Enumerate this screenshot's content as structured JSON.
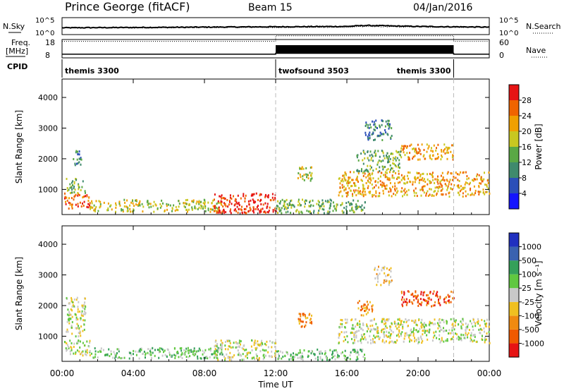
{
  "header": {
    "station": "Prince George (fitACF)",
    "beam": "Beam 15",
    "date": "04/Jan/2016"
  },
  "nsky_panel": {
    "left_label": "N.Sky",
    "right_label": "N.Search",
    "left_ticks": [
      "10^5",
      "10^0"
    ],
    "right_ticks": [
      "10^5",
      "10^0"
    ]
  },
  "freq_panel": {
    "left_label_1": "Freq.",
    "left_label_2": "[MHz]",
    "right_label": "Nave",
    "left_ticks": [
      "18",
      "8"
    ],
    "right_ticks": [
      "60",
      "0"
    ]
  },
  "cpid": {
    "label": "CPID",
    "segments": [
      {
        "name": "themis 3300",
        "start_hr": 0,
        "end_hr": 12
      },
      {
        "name": "twofsound 3503",
        "start_hr": 12,
        "end_hr": 22
      },
      {
        "name": "themis 3300",
        "start_hr": 22,
        "end_hr": 24
      }
    ]
  },
  "x_axis": {
    "label": "Time UT",
    "ticks": [
      "00:00",
      "04:00",
      "08:00",
      "12:00",
      "16:00",
      "20:00",
      "00:00"
    ],
    "range_hr": [
      0,
      24
    ]
  },
  "y_axis": {
    "label": "Slant Range [km]",
    "ticks": [
      "1000",
      "2000",
      "3000",
      "4000"
    ],
    "range_km": [
      180,
      4600
    ]
  },
  "power_colorbar": {
    "label": "Power [dB]",
    "ticks": [
      "4",
      "8",
      "12",
      "16",
      "20",
      "24",
      "28"
    ],
    "colors": [
      "#1414ff",
      "#2b4fb8",
      "#3f8a6d",
      "#5aa845",
      "#c8c820",
      "#f0a000",
      "#f06400",
      "#e61414"
    ]
  },
  "velocity_colorbar": {
    "label": "Velocity [m s⁻¹]",
    "ticks": [
      "1000",
      "500",
      "100",
      "25",
      "-25",
      "-100",
      "-500",
      "-1000"
    ],
    "colors": [
      "#2030c0",
      "#3a62b0",
      "#35a05a",
      "#60c840",
      "#c8c8c8",
      "#f0c020",
      "#f08a10",
      "#f05a00",
      "#e61414"
    ]
  },
  "chart_data": [
    {
      "type": "line",
      "x": [
        0,
        4,
        8,
        12,
        16,
        17,
        20,
        24
      ],
      "series": [
        {
          "name": "N.Sky",
          "values": [
            2.0,
            2.1,
            2.2,
            2.3,
            2.4,
            2.7,
            2.4,
            2.2
          ]
        },
        {
          "name": "N.Search",
          "values": [
            2.0,
            2.0,
            2.1,
            2.1,
            2.2,
            2.4,
            2.2,
            2.1
          ]
        }
      ],
      "ylim": [
        0,
        5
      ],
      "yscale": "log"
    },
    {
      "type": "line",
      "x": [
        0,
        12,
        12,
        22,
        22,
        24
      ],
      "series": [
        {
          "name": "Freq.",
          "values": [
            10,
            10,
            10.5,
            10.5,
            10,
            10
          ]
        },
        {
          "name": "Nave",
          "values": [
            17,
            17,
            20,
            20,
            17,
            17
          ]
        }
      ],
      "ylim": [
        8,
        18
      ]
    },
    {
      "type": "heatmap",
      "regions": [
        {
          "t": [
            0.1,
            1.6
          ],
          "r": [
            400,
            900
          ],
          "level": 6
        },
        {
          "t": [
            0.2,
            1.3
          ],
          "r": [
            900,
            1400
          ],
          "level": 3
        },
        {
          "t": [
            0.6,
            1.1
          ],
          "r": [
            1800,
            2300
          ],
          "level": 2
        },
        {
          "t": [
            1.5,
            9.0
          ],
          "r": [
            300,
            700
          ],
          "level": 4
        },
        {
          "t": [
            8.5,
            12.0
          ],
          "r": [
            250,
            900
          ],
          "level": 7
        },
        {
          "t": [
            12.0,
            17.0
          ],
          "r": [
            250,
            700
          ],
          "level": 3
        },
        {
          "t": [
            13.2,
            14.0
          ],
          "r": [
            1300,
            1800
          ],
          "level": 4
        },
        {
          "t": [
            15.5,
            24.0
          ],
          "r": [
            800,
            1600
          ],
          "level": 5
        },
        {
          "t": [
            19.0,
            22.0
          ],
          "r": [
            2000,
            2500
          ],
          "level": 5
        },
        {
          "t": [
            16.5,
            19.0
          ],
          "r": [
            1600,
            2300
          ],
          "level": 3
        },
        {
          "t": [
            17.0,
            18.5
          ],
          "r": [
            2600,
            3300
          ],
          "level": 2
        }
      ]
    },
    {
      "type": "heatmap",
      "regions": [
        {
          "t": [
            0.1,
            1.6
          ],
          "r": [
            400,
            900
          ],
          "level": 4
        },
        {
          "t": [
            0.2,
            1.3
          ],
          "r": [
            1000,
            2300
          ],
          "level": 4
        },
        {
          "t": [
            1.5,
            9.0
          ],
          "r": [
            300,
            650
          ],
          "level": 3
        },
        {
          "t": [
            8.5,
            12.0
          ],
          "r": [
            250,
            900
          ],
          "level": 4
        },
        {
          "t": [
            12.0,
            17.0
          ],
          "r": [
            250,
            600
          ],
          "level": 3
        },
        {
          "t": [
            13.2,
            14.0
          ],
          "r": [
            1300,
            1800
          ],
          "level": 6
        },
        {
          "t": [
            15.5,
            24.0
          ],
          "r": [
            800,
            1600
          ],
          "level": 4
        },
        {
          "t": [
            19.0,
            22.0
          ],
          "r": [
            2000,
            2500
          ],
          "level": 7
        },
        {
          "t": [
            16.5,
            17.5
          ],
          "r": [
            1700,
            2200
          ],
          "level": 6
        },
        {
          "t": [
            17.5,
            18.5
          ],
          "r": [
            2700,
            3300
          ],
          "level": 5
        }
      ]
    }
  ]
}
